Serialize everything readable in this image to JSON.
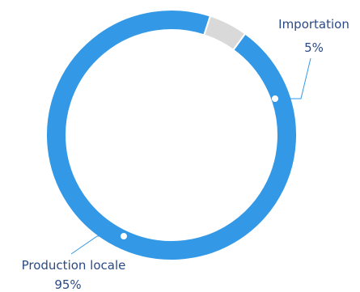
{
  "chart_data": {
    "type": "pie",
    "title": "",
    "slices": [
      {
        "label": "Importation",
        "value": 5,
        "value_label": "5%",
        "color": "#d9d9d9"
      },
      {
        "label": "Production locale",
        "value": 95,
        "value_label": "95%",
        "color": "#3399e6"
      }
    ],
    "donut": true,
    "legend": "none",
    "label_color": "#2b4a84",
    "leader_color": "#3399e6"
  }
}
